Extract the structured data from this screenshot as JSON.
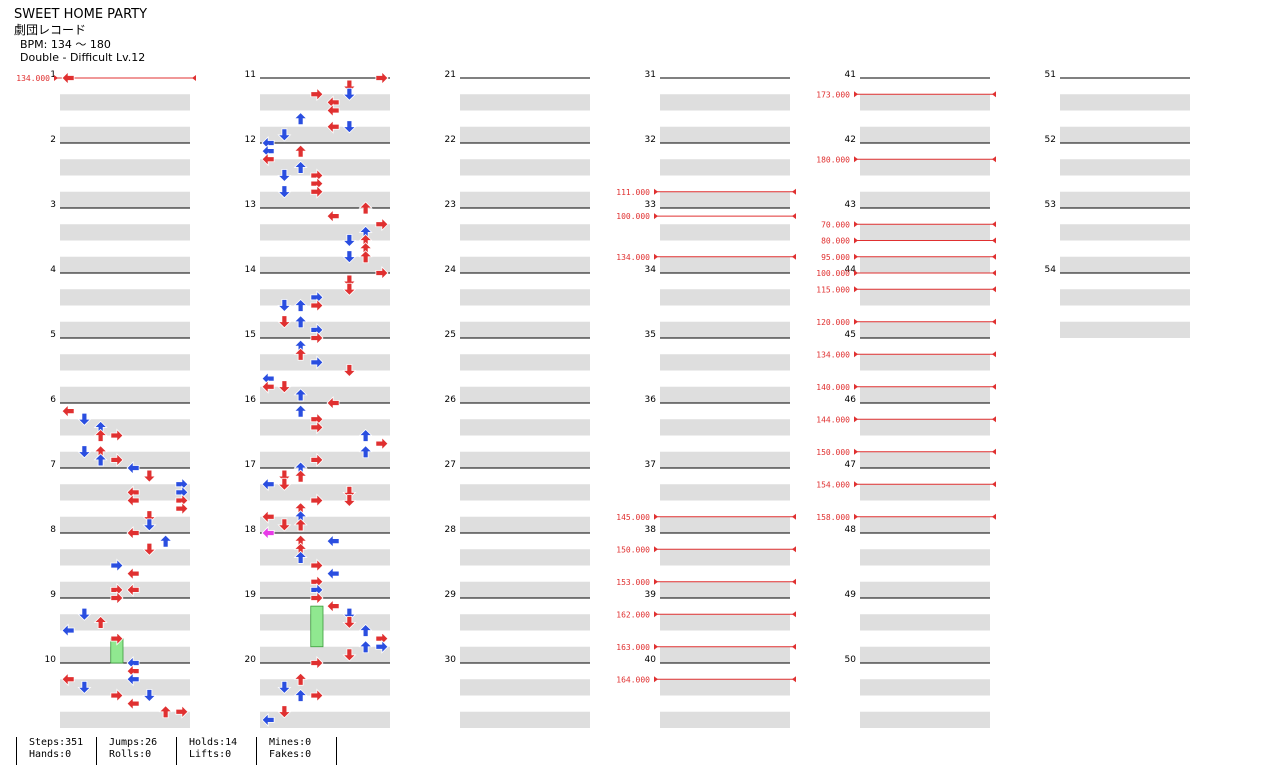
{
  "song": {
    "title": "SWEET HOME PARTY",
    "artist": "劇団レコード",
    "bpm": "BPM: 134 ～ 180",
    "difficulty": "Double - Difficult Lv.12"
  },
  "colors": {
    "red": "#e03030",
    "blue": "#2a4ee0",
    "magenta": "#e83ae8",
    "hold": "#90e890",
    "band": "#dedede",
    "bpm_line": "#e03030"
  },
  "measures": [
    "1",
    "2",
    "3",
    "4",
    "5",
    "6",
    "7",
    "8",
    "9",
    "10",
    "11",
    "12",
    "13",
    "14",
    "15",
    "16",
    "17",
    "18",
    "19",
    "20",
    "21",
    "22",
    "23",
    "24",
    "25",
    "26",
    "27",
    "28",
    "29",
    "30",
    "31",
    "32",
    "33",
    "34",
    "35",
    "36",
    "37",
    "38",
    "39",
    "40",
    "41",
    "42",
    "43",
    "44",
    "45",
    "46",
    "47",
    "48",
    "49",
    "50",
    "51",
    "52",
    "53",
    "54"
  ],
  "bpm_changes": [
    {
      "measure": 1,
      "beat": 0,
      "value": "134.000"
    },
    {
      "measure": 32,
      "beat": 3,
      "value": "111.000"
    },
    {
      "measure": 33,
      "beat": 0.5,
      "value": "100.000"
    },
    {
      "measure": 33,
      "beat": 3,
      "value": "134.000"
    },
    {
      "measure": 37,
      "beat": 3,
      "value": "145.000"
    },
    {
      "measure": 38,
      "beat": 1,
      "value": "150.000"
    },
    {
      "measure": 38,
      "beat": 3,
      "value": "153.000"
    },
    {
      "measure": 39,
      "beat": 1,
      "value": "162.000"
    },
    {
      "measure": 39,
      "beat": 3,
      "value": "163.000"
    },
    {
      "measure": 40,
      "beat": 1,
      "value": "164.000"
    },
    {
      "measure": 41,
      "beat": 1,
      "value": "173.000"
    },
    {
      "measure": 42,
      "beat": 1,
      "value": "180.000"
    },
    {
      "measure": 43,
      "beat": 1,
      "value": "70.000"
    },
    {
      "measure": 43,
      "beat": 2,
      "value": "80.000"
    },
    {
      "measure": 43,
      "beat": 3,
      "value": "95.000"
    },
    {
      "measure": 44,
      "beat": 0,
      "value": "100.000"
    },
    {
      "measure": 44,
      "beat": 1,
      "value": "115.000"
    },
    {
      "measure": 44,
      "beat": 3,
      "value": "120.000"
    },
    {
      "measure": 45,
      "beat": 1,
      "value": "134.000"
    },
    {
      "measure": 45,
      "beat": 3,
      "value": "140.000"
    },
    {
      "measure": 46,
      "beat": 1,
      "value": "144.000"
    },
    {
      "measure": 46,
      "beat": 3,
      "value": "150.000"
    },
    {
      "measure": 47,
      "beat": 1,
      "value": "154.000"
    },
    {
      "measure": 47,
      "beat": 3,
      "value": "158.000"
    }
  ],
  "notes": [
    [
      1,
      0,
      "r",
      "rd"
    ],
    [
      6,
      0.5,
      0,
      "rd"
    ],
    [
      6,
      1,
      1,
      "bl"
    ],
    [
      6,
      1.5,
      2,
      "bl"
    ],
    [
      6,
      2,
      2,
      "rd"
    ],
    [
      6,
      2,
      3,
      "rd"
    ],
    [
      6,
      3,
      1,
      "bl"
    ],
    [
      6,
      3,
      2,
      "rd"
    ],
    [
      6,
      3.5,
      2,
      "bl"
    ],
    [
      6,
      3.5,
      3,
      "rd"
    ],
    [
      7,
      0,
      4,
      "bl"
    ],
    [
      7,
      0.5,
      5,
      "rd"
    ],
    [
      7,
      1,
      7,
      "bl"
    ],
    [
      7,
      1.5,
      4,
      "rd"
    ],
    [
      7,
      1.5,
      7,
      "bl"
    ],
    [
      7,
      2,
      4,
      "rd"
    ],
    [
      7,
      2,
      7,
      "rd"
    ],
    [
      7,
      2.5,
      7,
      "rd"
    ],
    [
      7,
      3,
      5,
      "rd"
    ],
    [
      7,
      3.5,
      5,
      "bl"
    ],
    [
      8,
      0,
      4,
      "rd"
    ],
    [
      8,
      0.5,
      6,
      "bl"
    ],
    [
      8,
      1,
      5,
      "rd"
    ],
    [
      8,
      2,
      3,
      "bl"
    ],
    [
      8,
      2.5,
      4,
      "rd"
    ],
    [
      8,
      3.5,
      3,
      "rd"
    ],
    [
      8,
      3.5,
      4,
      "rd"
    ],
    [
      9,
      0,
      3,
      "rd"
    ],
    [
      9,
      1,
      1,
      "bl"
    ],
    [
      9,
      1.5,
      2,
      "rd"
    ],
    [
      9,
      2,
      0,
      "bl"
    ],
    [
      9,
      2.5,
      3,
      "rd"
    ],
    [
      10,
      0,
      4,
      "bl"
    ],
    [
      10,
      0.5,
      4,
      "rd"
    ],
    [
      10,
      1,
      0,
      "rd"
    ],
    [
      10,
      1,
      4,
      "bl"
    ],
    [
      10,
      1.5,
      1,
      "bl"
    ],
    [
      10,
      2,
      3,
      "rd"
    ],
    [
      10,
      2,
      5,
      "bl"
    ],
    [
      10,
      2.5,
      4,
      "rd"
    ],
    [
      10,
      3,
      6,
      "rd"
    ],
    [
      10,
      3,
      7,
      "rd"
    ],
    [
      11,
      0,
      7,
      "rd"
    ],
    [
      11,
      0.5,
      5,
      "rd"
    ],
    [
      11,
      1,
      3,
      "rd"
    ],
    [
      11,
      1,
      5,
      "bl"
    ],
    [
      11,
      1.5,
      4,
      "rd"
    ],
    [
      11,
      2,
      4,
      "rd"
    ],
    [
      11,
      2.5,
      2,
      "bl"
    ],
    [
      11,
      3,
      5,
      "bl"
    ],
    [
      11,
      3,
      4,
      "rd"
    ],
    [
      11,
      3.5,
      1,
      "bl"
    ],
    [
      12,
      0,
      0,
      "bl"
    ],
    [
      12,
      0.5,
      2,
      "rd"
    ],
    [
      12,
      0.5,
      0,
      "bl"
    ],
    [
      12,
      1,
      0,
      "rd"
    ],
    [
      12,
      1.5,
      2,
      "bl"
    ],
    [
      12,
      2,
      1,
      "bl"
    ],
    [
      12,
      2,
      3,
      "rd"
    ],
    [
      12,
      2.5,
      3,
      "rd"
    ],
    [
      12,
      3,
      1,
      "bl"
    ],
    [
      12,
      3,
      3,
      "rd"
    ],
    [
      13,
      0,
      6,
      "rd"
    ],
    [
      13,
      0.5,
      4,
      "rd"
    ],
    [
      13,
      1,
      7,
      "rd"
    ],
    [
      13,
      1.5,
      6,
      "bl"
    ],
    [
      13,
      2,
      5,
      "bl"
    ],
    [
      13,
      2,
      6,
      "rd"
    ],
    [
      13,
      2.5,
      6,
      "rd"
    ],
    [
      13,
      3,
      6,
      "rd"
    ],
    [
      13,
      3,
      5,
      "bl"
    ],
    [
      14,
      0,
      7,
      "rd"
    ],
    [
      14,
      0.5,
      5,
      "rd"
    ],
    [
      14,
      1,
      5,
      "rd"
    ],
    [
      14,
      1.5,
      3,
      "bl"
    ],
    [
      14,
      2,
      1,
      "bl"
    ],
    [
      14,
      2,
      2,
      "bl"
    ],
    [
      14,
      2,
      3,
      "rd"
    ],
    [
      14,
      3,
      1,
      "rd"
    ],
    [
      14,
      3,
      2,
      "bl"
    ],
    [
      14,
      3.5,
      3,
      "bl"
    ],
    [
      15,
      0,
      3,
      "rd"
    ],
    [
      15,
      0.5,
      2,
      "bl"
    ],
    [
      15,
      1,
      2,
      "rd"
    ],
    [
      15,
      1.5,
      3,
      "bl"
    ],
    [
      15,
      2,
      5,
      "rd"
    ],
    [
      15,
      2.5,
      0,
      "bl"
    ],
    [
      15,
      3,
      0,
      "rd"
    ],
    [
      15,
      3,
      1,
      "rd"
    ],
    [
      15,
      3.5,
      2,
      "bl"
    ],
    [
      16,
      0,
      4,
      "rd"
    ],
    [
      16,
      0.5,
      2,
      "bl"
    ],
    [
      16,
      1,
      3,
      "rd"
    ],
    [
      16,
      1.5,
      3,
      "rd"
    ],
    [
      16,
      2,
      6,
      "bl"
    ],
    [
      16,
      2.5,
      7,
      "rd"
    ],
    [
      16,
      3,
      6,
      "bl"
    ],
    [
      16,
      3.5,
      3,
      "rd"
    ],
    [
      17,
      0,
      2,
      "bl"
    ],
    [
      17,
      0.5,
      1,
      "rd"
    ],
    [
      17,
      0.5,
      2,
      "rd"
    ],
    [
      17,
      1,
      0,
      "bl"
    ],
    [
      17,
      1,
      1,
      "rd"
    ],
    [
      17,
      1.5,
      5,
      "rd"
    ],
    [
      17,
      2,
      5,
      "rd"
    ],
    [
      17,
      2,
      3,
      "rd"
    ],
    [
      17,
      2.5,
      2,
      "rd"
    ],
    [
      17,
      3,
      0,
      "rd"
    ],
    [
      17,
      3,
      2,
      "bl"
    ],
    [
      17,
      3.5,
      1,
      "rd"
    ],
    [
      17,
      3.5,
      2,
      "rd"
    ],
    [
      18,
      0,
      0,
      "bl"
    ],
    [
      18,
      0,
      0,
      "mg"
    ],
    [
      18,
      0.5,
      2,
      "rd"
    ],
    [
      18,
      0.5,
      4,
      "bl"
    ],
    [
      18,
      1,
      2,
      "rd"
    ],
    [
      18,
      1.5,
      2,
      "bl"
    ],
    [
      18,
      2,
      3,
      "rd"
    ],
    [
      18,
      2.5,
      4,
      "bl"
    ],
    [
      18,
      3,
      3,
      "rd"
    ],
    [
      18,
      3.5,
      3,
      "bl"
    ],
    [
      19,
      0,
      3,
      "rd"
    ],
    [
      19,
      0.5,
      4,
      "rd"
    ],
    [
      19,
      1,
      5,
      "bl"
    ],
    [
      19,
      1.5,
      5,
      "rd"
    ],
    [
      19,
      2,
      6,
      "bl"
    ],
    [
      19,
      2.5,
      7,
      "rd"
    ],
    [
      19,
      3,
      6,
      "bl"
    ],
    [
      19,
      3,
      7,
      "bl"
    ],
    [
      19,
      3.5,
      5,
      "rd"
    ],
    [
      20,
      0,
      3,
      "rd"
    ],
    [
      20,
      1,
      2,
      "rd"
    ],
    [
      20,
      1.5,
      1,
      "bl"
    ],
    [
      20,
      2,
      3,
      "rd"
    ],
    [
      20,
      2,
      2,
      "bl"
    ],
    [
      20,
      3,
      1,
      "rd"
    ],
    [
      20,
      3.5,
      0,
      "bl"
    ]
  ],
  "holds": [
    [
      9,
      2.5,
      10,
      0,
      3,
      "hl"
    ],
    [
      19,
      0.5,
      19,
      3,
      3,
      "hl"
    ]
  ],
  "stats": [
    {
      "l1": "Steps:351",
      "l2": "Hands:0"
    },
    {
      "l1": "Jumps:26",
      "l2": "Rolls:0"
    },
    {
      "l1": "Holds:14",
      "l2": "Lifts:0"
    },
    {
      "l1": "Mines:0",
      "l2": "Fakes:0"
    }
  ]
}
